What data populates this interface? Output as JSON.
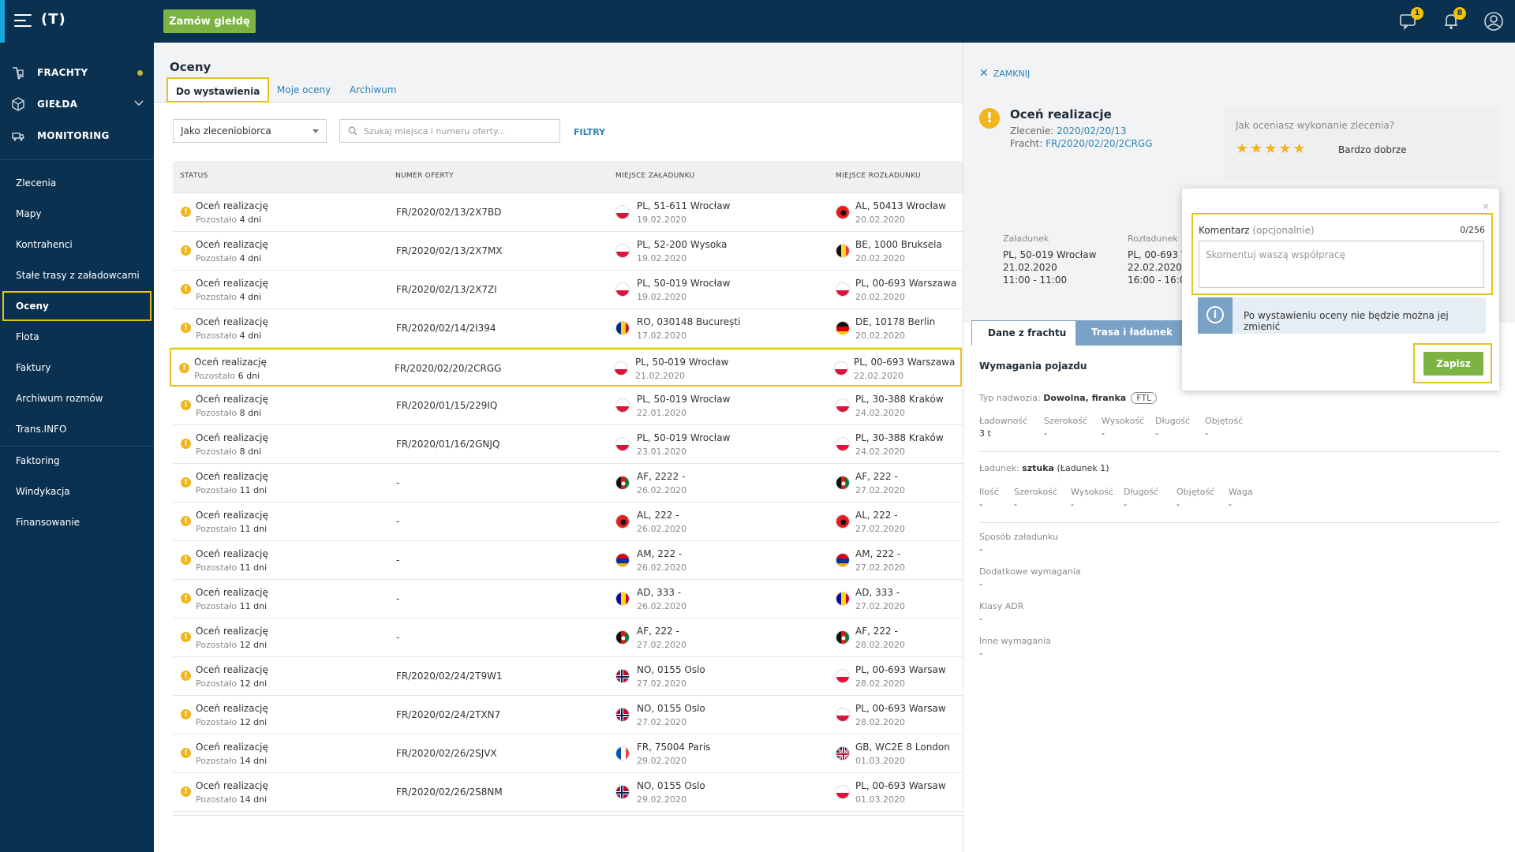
{
  "topbar": {
    "logo": "(T)",
    "order_button": "Zamów giełdę",
    "messages_badge": "1",
    "notifications_badge": "8"
  },
  "sidebar": {
    "main_nav": [
      {
        "label": "FRACHTY",
        "icon": "freight-icon"
      },
      {
        "label": "GIEŁDA",
        "icon": "exchange-icon"
      },
      {
        "label": "MONITORING",
        "icon": "monitoring-icon"
      }
    ],
    "items": [
      "Zlecenia",
      "Mapy",
      "Kontrahenci",
      "Stałe trasy z załadowcami",
      "Oceny",
      "Flota",
      "Faktury",
      "Archiwum rozmów",
      "Trans.INFO",
      "Faktoring",
      "Windykacja",
      "Finansowanie"
    ]
  },
  "page": {
    "title": "Oceny",
    "tabs": [
      "Do wystawienia",
      "Moje oceny",
      "Archiwum"
    ],
    "select_value": "Jako zleceniobiorca",
    "search_placeholder": "Szukaj miejsca i numeru oferty...",
    "filters": "FILTRY"
  },
  "table": {
    "headers": [
      "STATUS",
      "NUMER OFERTY",
      "MIEJSCE ZAŁADUNKU",
      "MIEJSCE ROZŁADUNKU"
    ],
    "rows": [
      {
        "status": "Oceń realizację",
        "left_prefix": "Pozostało ",
        "left": "4 dni",
        "offer": "FR/2020/02/13/2X7BD",
        "load_flag": "PL",
        "load": "PL, 51-611 Wrocław",
        "load_date": "19.02.2020",
        "unload_flag": "AL",
        "unload": "AL, 50413 Wrocław",
        "unload_date": "20.02.2020"
      },
      {
        "status": "Oceń realizację",
        "left_prefix": "Pozostało ",
        "left": "4 dni",
        "offer": "FR/2020/02/13/2X7MX",
        "load_flag": "PL",
        "load": "PL, 52-200 Wysoka",
        "load_date": "19.02.2020",
        "unload_flag": "BE",
        "unload": "BE, 1000 Bruksela",
        "unload_date": "20.02.2020"
      },
      {
        "status": "Oceń realizację",
        "left_prefix": "Pozostało ",
        "left": "4 dni",
        "offer": "FR/2020/02/13/2X7ZI",
        "load_flag": "PL",
        "load": "PL, 50-019 Wrocław",
        "load_date": "19.02.2020",
        "unload_flag": "PL",
        "unload": "PL, 00-693 Warszawa",
        "unload_date": "20.02.2020"
      },
      {
        "status": "Oceń realizację",
        "left_prefix": "Pozostało ",
        "left": "4 dni",
        "offer": "FR/2020/02/14/2I394",
        "load_flag": "RO",
        "load": "RO, 030148 București",
        "load_date": "17.02.2020",
        "unload_flag": "DE",
        "unload": "DE, 10178 Berlin",
        "unload_date": "20.02.2020"
      },
      {
        "status": "Oceń realizację",
        "left_prefix": "Pozostało ",
        "left": "6 dni",
        "offer": "FR/2020/02/20/2CRGG",
        "load_flag": "PL",
        "load": "PL, 50-019 Wrocław",
        "load_date": "21.02.2020",
        "unload_flag": "PL",
        "unload": "PL, 00-693 Warszawa",
        "unload_date": "22.02.2020"
      },
      {
        "status": "Oceń realizację",
        "left_prefix": "Pozostało ",
        "left": "8 dni",
        "offer": "FR/2020/01/15/229IQ",
        "load_flag": "PL",
        "load": "PL, 50-019 Wrocław",
        "load_date": "22.01.2020",
        "unload_flag": "PL",
        "unload": "PL, 30-388 Kraków",
        "unload_date": "24.02.2020"
      },
      {
        "status": "Oceń realizację",
        "left_prefix": "Pozostało ",
        "left": "8 dni",
        "offer": "FR/2020/01/16/2GNJQ",
        "load_flag": "PL",
        "load": "PL, 50-019 Wrocław",
        "load_date": "23.01.2020",
        "unload_flag": "PL",
        "unload": "PL, 30-388 Kraków",
        "unload_date": "24.02.2020"
      },
      {
        "status": "Oceń realizację",
        "left_prefix": "Pozostało ",
        "left": "11 dni",
        "offer": "-",
        "load_flag": "AF",
        "load": "AF, 2222 -",
        "load_date": "26.02.2020",
        "unload_flag": "AF",
        "unload": "AF, 222 -",
        "unload_date": "27.02.2020"
      },
      {
        "status": "Oceń realizację",
        "left_prefix": "Pozostało ",
        "left": "11 dni",
        "offer": "-",
        "load_flag": "AL",
        "load": "AL, 222 -",
        "load_date": "26.02.2020",
        "unload_flag": "AL",
        "unload": "AL, 222 -",
        "unload_date": "27.02.2020"
      },
      {
        "status": "Oceń realizację",
        "left_prefix": "Pozostało ",
        "left": "11 dni",
        "offer": "-",
        "load_flag": "AM",
        "load": "AM, 222 -",
        "load_date": "26.02.2020",
        "unload_flag": "AM",
        "unload": "AM, 222 -",
        "unload_date": "27.02.2020"
      },
      {
        "status": "Oceń realizację",
        "left_prefix": "Pozostało ",
        "left": "11 dni",
        "offer": "-",
        "load_flag": "AD",
        "load": "AD, 333 -",
        "load_date": "26.02.2020",
        "unload_flag": "AD",
        "unload": "AD, 333 -",
        "unload_date": "27.02.2020"
      },
      {
        "status": "Oceń realizację",
        "left_prefix": "Pozostało ",
        "left": "12 dni",
        "offer": "-",
        "load_flag": "AF",
        "load": "AF, 222 -",
        "load_date": "27.02.2020",
        "unload_flag": "AF",
        "unload": "AF, 222 -",
        "unload_date": "28.02.2020"
      },
      {
        "status": "Oceń realizację",
        "left_prefix": "Pozostało ",
        "left": "12 dni",
        "offer": "FR/2020/02/24/2T9W1",
        "load_flag": "NO",
        "load": "NO, 0155 Oslo",
        "load_date": "27.02.2020",
        "unload_flag": "PL",
        "unload": "PL, 00-693 Warsaw",
        "unload_date": "28.02.2020"
      },
      {
        "status": "Oceń realizację",
        "left_prefix": "Pozostało ",
        "left": "12 dni",
        "offer": "FR/2020/02/24/2TXN7",
        "load_flag": "NO",
        "load": "NO, 0155 Oslo",
        "load_date": "27.02.2020",
        "unload_flag": "PL",
        "unload": "PL, 00-693 Warsaw",
        "unload_date": "28.02.2020"
      },
      {
        "status": "Oceń realizację",
        "left_prefix": "Pozostało ",
        "left": "14 dni",
        "offer": "FR/2020/02/26/2SJVX",
        "load_flag": "FR",
        "load": "FR, 75004 Paris",
        "load_date": "29.02.2020",
        "unload_flag": "GB",
        "unload": "GB, WC2E 8 London",
        "unload_date": "01.03.2020"
      },
      {
        "status": "Oceń realizację",
        "left_prefix": "Pozostało ",
        "left": "14 dni",
        "offer": "FR/2020/02/26/2S8NM",
        "load_flag": "NO",
        "load": "NO, 0155 Oslo",
        "load_date": "29.02.2020",
        "unload_flag": "PL",
        "unload": "PL, 00-693 Warsaw",
        "unload_date": "01.03.2020"
      }
    ]
  },
  "panel": {
    "close": "ZAMKNIJ",
    "title": "Oceń realizacje",
    "order_label": "Zlecenie: ",
    "order_value": "2020/02/20/13",
    "freight_label": "Fracht: ",
    "freight_value": "FR/2020/02/20/2CRGG",
    "rating_question": "Jak oceniasz wykonanie zlecenia?",
    "stars": "★★★★★",
    "rating_label": "Bardzo dobrze",
    "load": {
      "label": "Załadunek",
      "place": "PL, 50-019 Wrocław",
      "date": "21.02.2020",
      "time": "11:00 - 11:00"
    },
    "unload": {
      "label": "Rozładunek",
      "place": "PL, 00-693 W",
      "date": "22.02.2020",
      "time": "16:00 - 16:00"
    },
    "tabs": [
      "Dane z frachtu",
      "Trasa i ładunek"
    ],
    "section": "Wymagania pojazdu",
    "body_type_label": "Typ nadwozia: ",
    "body_type_value": "Dowolna, firanka",
    "ftl": "FTL",
    "vehicle_cols": [
      {
        "label": "Ładowność",
        "value": "3 t"
      },
      {
        "label": "Szerokość",
        "value": "-"
      },
      {
        "label": "Wysokość",
        "value": "-"
      },
      {
        "label": "Długość",
        "value": "-"
      },
      {
        "label": "Objętość",
        "value": "-"
      }
    ],
    "cargo_label": "Ładunek: ",
    "cargo_value": "sztuka",
    "cargo_extra": " (Ładunek 1)",
    "cargo_cols": [
      {
        "label": "Ilość",
        "value": "-"
      },
      {
        "label": "Szerokość",
        "value": "-"
      },
      {
        "label": "Wysokość",
        "value": "-"
      },
      {
        "label": "Długość",
        "value": "-"
      },
      {
        "label": "Objętość",
        "value": "-"
      },
      {
        "label": "Waga",
        "value": "-"
      }
    ],
    "extras": [
      {
        "label": "Sposób załadunku",
        "value": "-"
      },
      {
        "label": "Dodatkowe wymagania",
        "value": "-"
      },
      {
        "label": "Klasy ADR",
        "value": "-"
      },
      {
        "label": "Inne wymagania",
        "value": "-"
      }
    ]
  },
  "popup": {
    "comment_label": "Komentarz",
    "optional": "(opcjonalnie)",
    "count": "0/256",
    "placeholder": "Skomentuj waszą współpracę",
    "info": "Po wystawieniu oceny nie będzie można jej zmienić",
    "save": "Zapisz",
    "close": "✕"
  },
  "colors": {
    "navy": "#0a3150",
    "accent_yellow": "#e8c21c",
    "green": "#7cb342",
    "link": "#2c82b4",
    "warning": "#f2b51c"
  }
}
